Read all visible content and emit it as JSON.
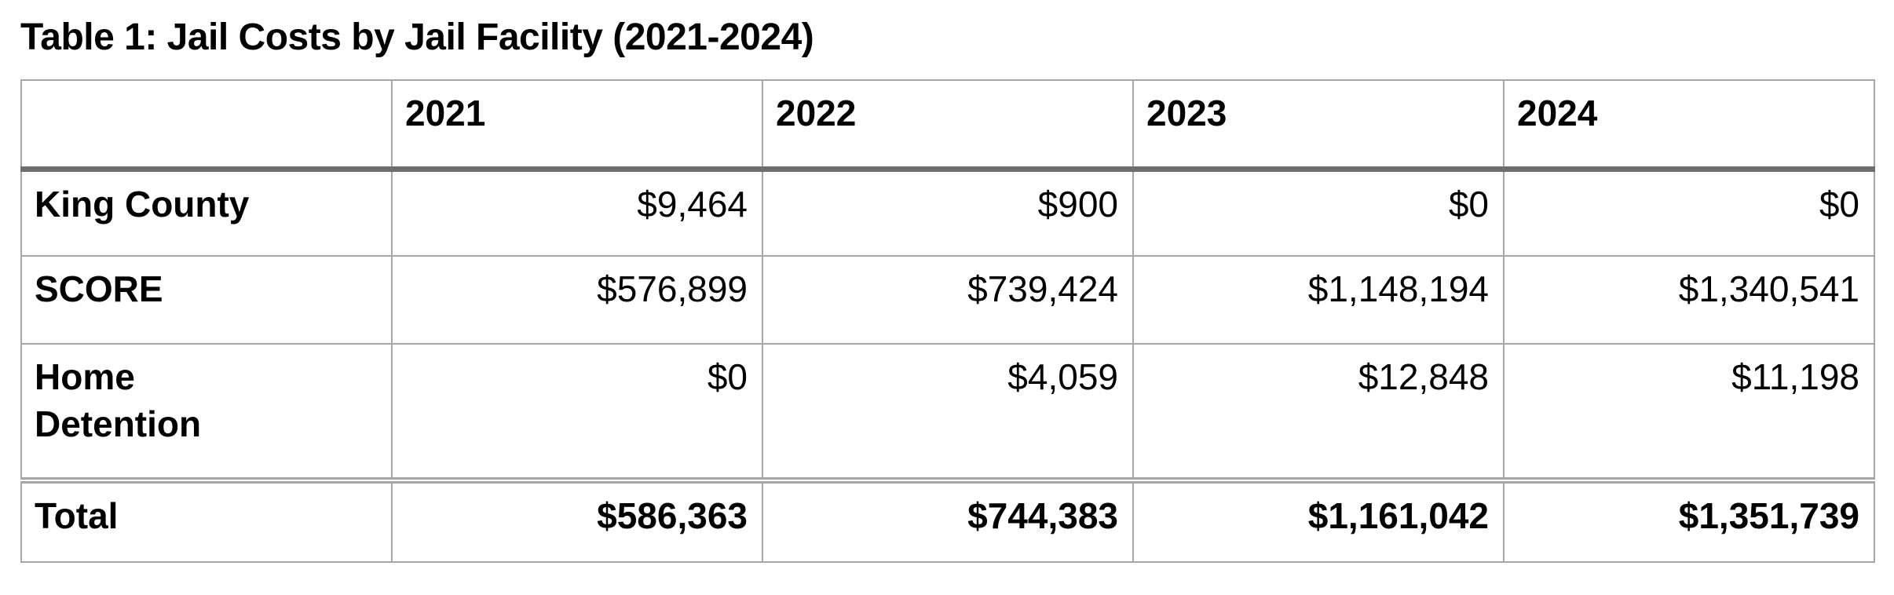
{
  "title": "Table 1: Jail Costs by Jail Facility (2021-2024)",
  "colors": {
    "background": "#ffffff",
    "text": "#000000",
    "border_thin": "#a6a6a6",
    "border_thick_header_rule": "#6e6e6e"
  },
  "table": {
    "columns": [
      "",
      "2021",
      "2022",
      "2023",
      "2024"
    ],
    "rows": [
      {
        "label": "King County",
        "values": [
          "$9,464",
          "$900",
          "$0",
          "$0"
        ]
      },
      {
        "label": "SCORE",
        "values": [
          "$576,899",
          "$739,424",
          "$1,148,194",
          "$1,340,541"
        ]
      },
      {
        "label": "Home Detention",
        "values": [
          "$0",
          "$4,059",
          "$12,848",
          "$11,198"
        ]
      }
    ],
    "total_row": {
      "label": "Total",
      "values": [
        "$586,363",
        "$744,383",
        "$1,161,042",
        "$1,351,739"
      ]
    }
  }
}
